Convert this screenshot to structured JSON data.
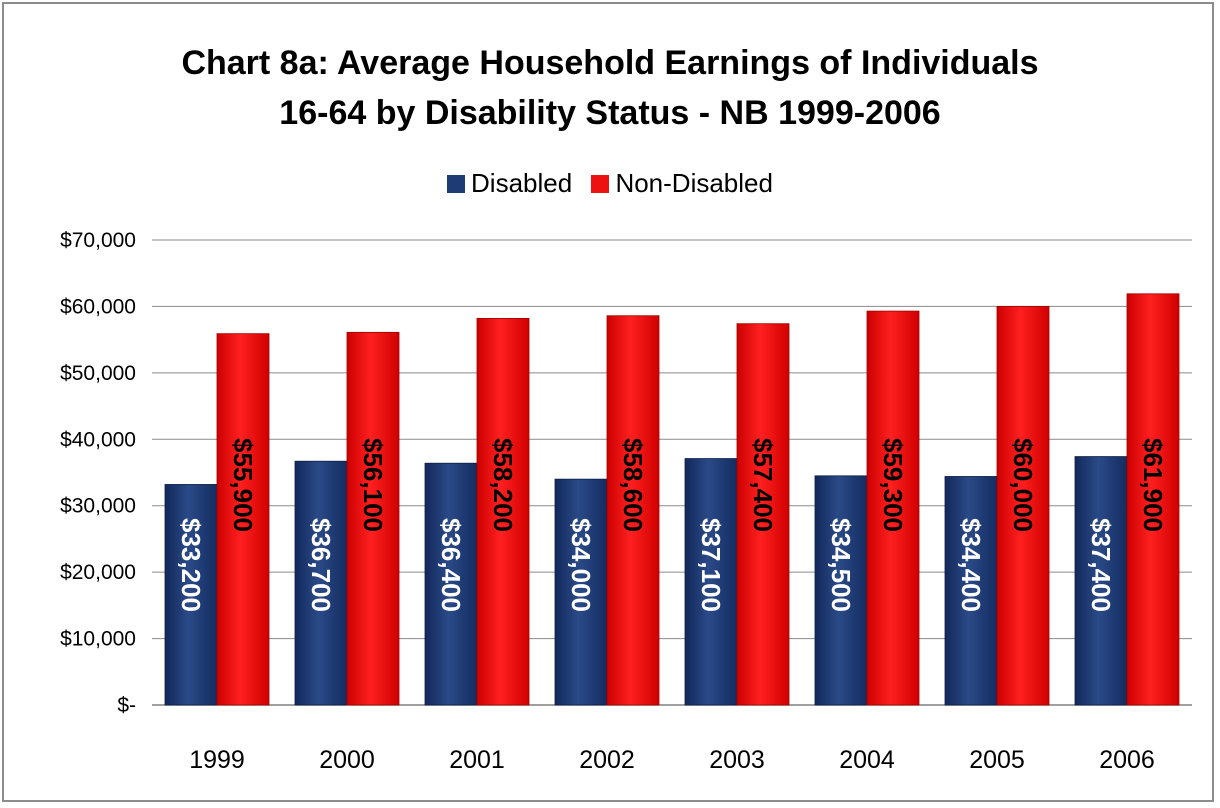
{
  "chart_data": {
    "type": "bar",
    "title_line1": "Chart 8a: Average Household Earnings of Individuals",
    "title_line2": "16-64 by Disability Status - NB 1999-2006",
    "categories": [
      "1999",
      "2000",
      "2001",
      "2002",
      "2003",
      "2004",
      "2005",
      "2006"
    ],
    "series": [
      {
        "name": "Disabled",
        "color": "#1f3b73",
        "values": [
          33200,
          36700,
          36400,
          34000,
          37100,
          34500,
          34400,
          37400
        ],
        "labels": [
          "$33,200",
          "$36,700",
          "$36,400",
          "$34,000",
          "$37,100",
          "$34,500",
          "$34,400",
          "$37,400"
        ],
        "label_color": "#ffffff"
      },
      {
        "name": "Non-Disabled",
        "color": "#ee1111",
        "values": [
          55900,
          56100,
          58200,
          58600,
          57400,
          59300,
          60000,
          61900
        ],
        "labels": [
          "$55,900",
          "$56,100",
          "$58,200",
          "$58,600",
          "$57,400",
          "$59,300",
          "$60,000",
          "$61,900"
        ],
        "label_color": "#000000"
      }
    ],
    "ylim": [
      0,
      70000
    ],
    "y_ticks": [
      0,
      10000,
      20000,
      30000,
      40000,
      50000,
      60000,
      70000
    ],
    "y_tick_labels": [
      "$-",
      "$10,000",
      "$20,000",
      "$30,000",
      "$40,000",
      "$50,000",
      "$60,000",
      "$70,000"
    ],
    "grid": true,
    "legend_position": "top"
  }
}
